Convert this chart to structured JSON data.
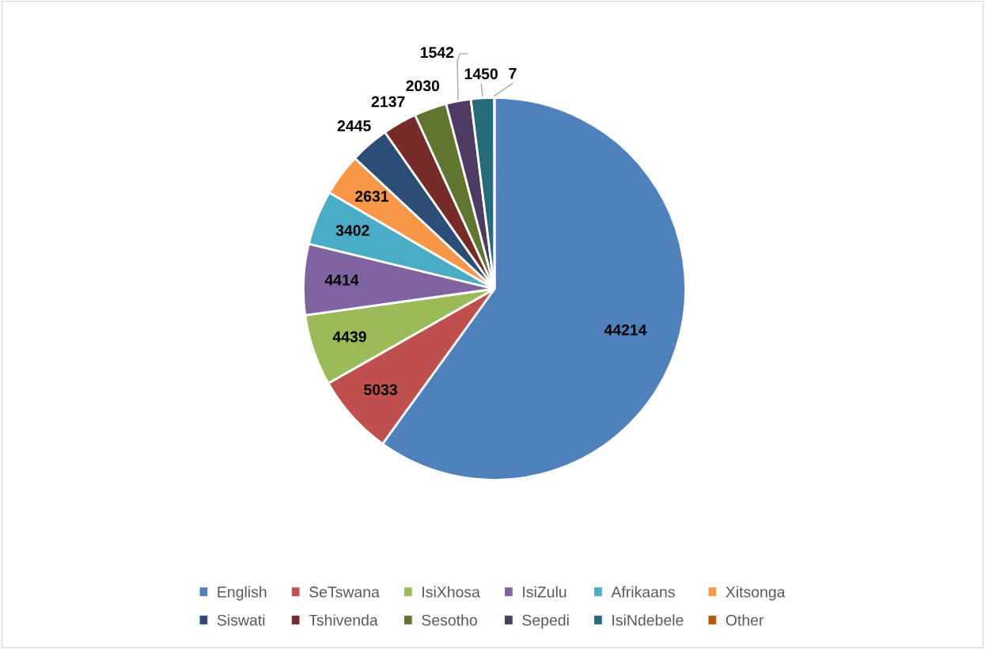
{
  "chart_data": {
    "type": "pie",
    "categories": [
      "English",
      "SeTswana",
      "IsiXhosa",
      "IsiZulu",
      "Afrikaans",
      "Xitsonga",
      "Siswati",
      "Tshivenda",
      "Sesotho",
      "Sepedi",
      "IsiNdebele",
      "Other"
    ],
    "values": [
      44214,
      5033,
      4439,
      4414,
      3402,
      2631,
      2445,
      2137,
      2030,
      1542,
      1450,
      7
    ],
    "colors": [
      "#4f81bd",
      "#c0504d",
      "#9bbb59",
      "#8064a2",
      "#4bacc6",
      "#f79646",
      "#2c4d75",
      "#772c2a",
      "#5f7530",
      "#4d3b62",
      "#276a7c",
      "#b65708"
    ],
    "data_labels": true,
    "legend": "bottom"
  }
}
